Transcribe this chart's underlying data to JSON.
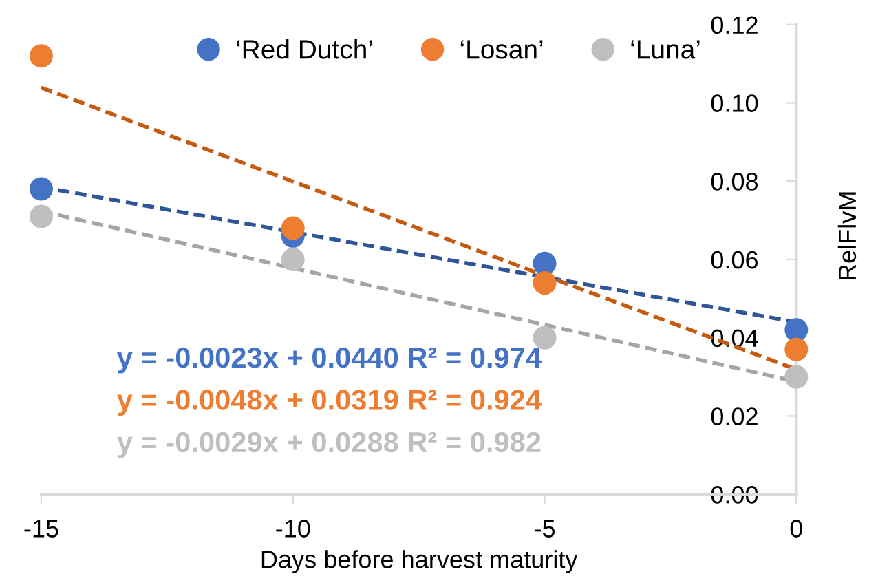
{
  "chart_data": {
    "type": "scatter",
    "xlabel": "Days before harvest maturity",
    "ylabel": "RelFlvM",
    "series": [
      {
        "name": "‘Red Dutch’",
        "color": "#4472c4",
        "x": [
          -15,
          -10,
          -5,
          0
        ],
        "values": [
          0.078,
          0.066,
          0.059,
          0.042
        ]
      },
      {
        "name": "‘Losan’",
        "color": "#ed7d31",
        "x": [
          -15,
          -10,
          -5,
          0
        ],
        "values": [
          0.112,
          0.068,
          0.054,
          0.037
        ]
      },
      {
        "name": "‘Luna’",
        "color": "#bfbfbf",
        "x": [
          -15,
          -10,
          -5,
          0
        ],
        "values": [
          0.071,
          0.06,
          0.04,
          0.03
        ]
      },
      {
        "type": "line",
        "color": "#2f5597",
        "line_style": "dashed",
        "marker": "none",
        "x": [
          -15,
          0
        ],
        "values": [
          0.0785,
          0.044
        ]
      },
      {
        "type": "line",
        "color": "#c55a11",
        "line_style": "dashed",
        "marker": "none",
        "x": [
          -15,
          0
        ],
        "values": [
          0.1039,
          0.0319
        ]
      },
      {
        "type": "line",
        "color": "#a5a5a5",
        "line_style": "dashed",
        "marker": "none",
        "x": [
          -15,
          0
        ],
        "values": [
          0.0723,
          0.0288
        ]
      }
    ],
    "annotations": [
      "y = -0.0023x + 0.0440 R² = 0.974",
      "y = -0.0048x + 0.0319 R² = 0.924",
      "y = -0.0029x + 0.0288 R² = 0.982"
    ],
    "xlim": [
      -15,
      0
    ],
    "xticks": [
      -15,
      -10,
      -5,
      0
    ],
    "ylim": [
      0,
      0.12
    ],
    "yticks": [
      {
        "value": 0,
        "label": "0.00"
      },
      {
        "value": 0.02,
        "label": "0.02"
      },
      {
        "value": 0.04,
        "label": "0.04"
      },
      {
        "value": 0.06,
        "label": "0.06"
      },
      {
        "value": 0.08,
        "label": "0.08"
      },
      {
        "value": 0.1,
        "label": "0.10"
      },
      {
        "value": 0.12,
        "label": "0.12"
      }
    ],
    "marker": "circle",
    "legend": "top",
    "grid": false
  }
}
